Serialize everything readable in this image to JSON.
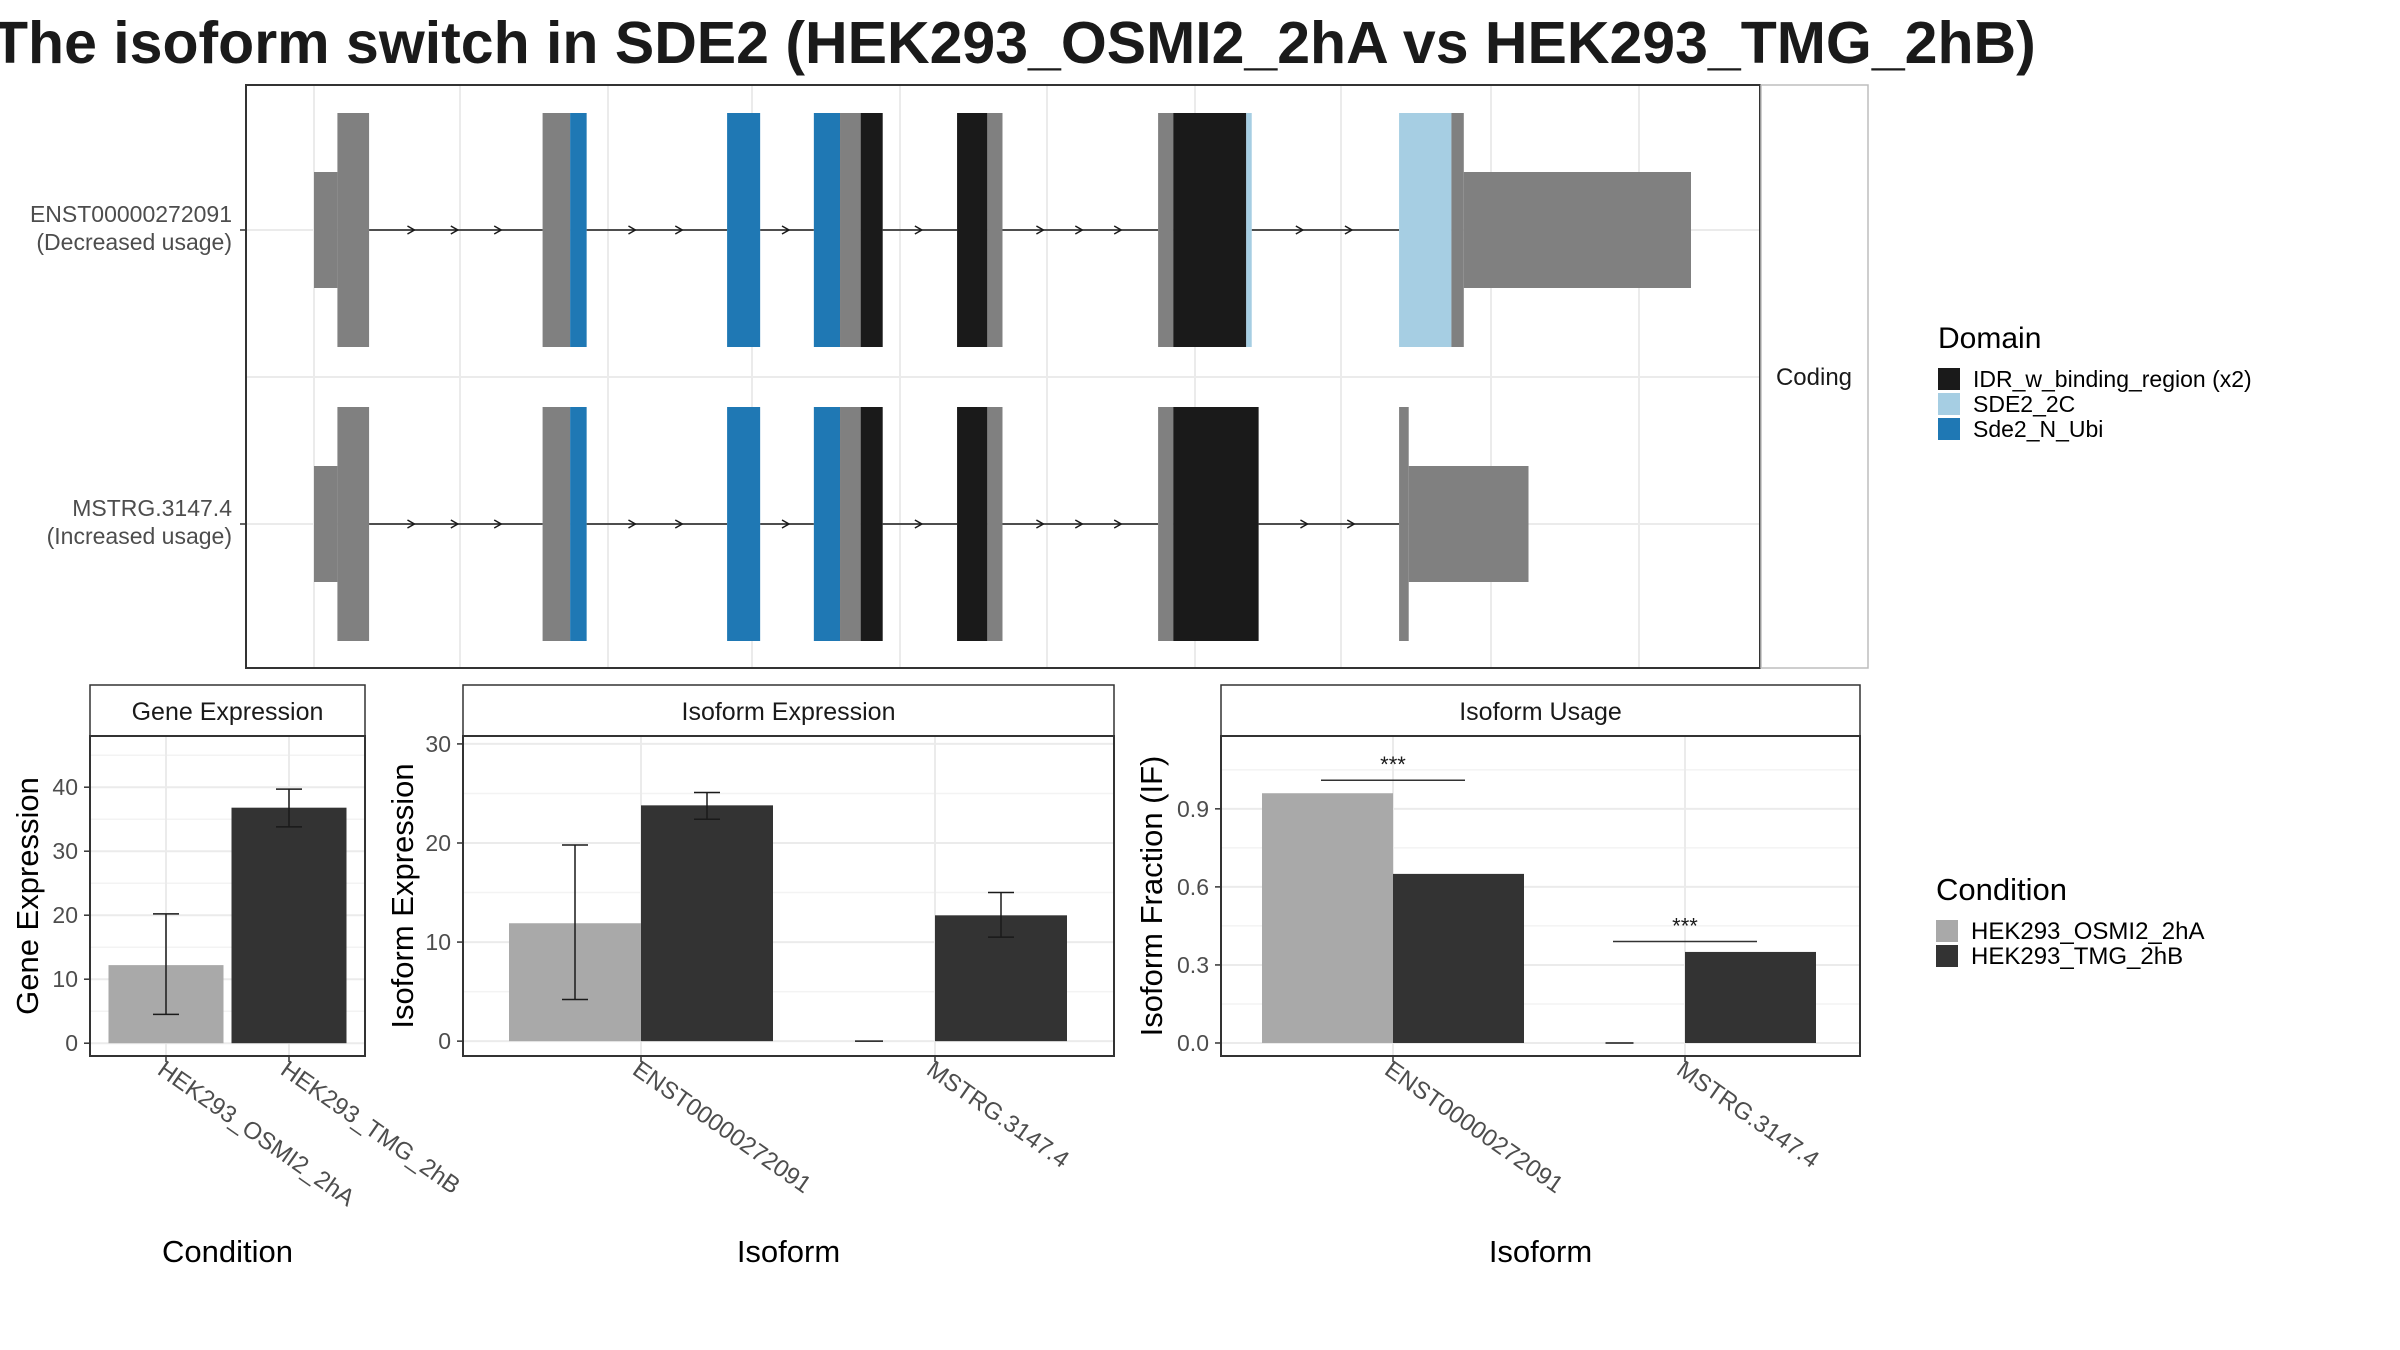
{
  "page": {
    "title": "The isoform switch in SDE2 (HEK293_OSMI2_2hA vs HEK293_TMG_2hB)"
  },
  "colors": {
    "utr_grey": "#808080",
    "IDR_w_binding_region (x2)": "#1a1a1a",
    "SDE2_2C": "#a6cee3",
    "Sde2_N_Ubi": "#1f78b4",
    "HEK293_OSMI2_2hA": "#a9a9a9",
    "HEK293_TMG_2hB": "#333333"
  },
  "chart_data": [
    {
      "type": "gene_structure",
      "panel_strip": "Coding",
      "x_range": [
        0,
        1000
      ],
      "transcripts": [
        {
          "name": "ENST00000272091",
          "label_line1": "ENST00000272091",
          "label_line2": "(Decreased usage)",
          "segments": [
            {
              "start": 0,
              "end": 17,
              "kind": "utr"
            },
            {
              "start": 17,
              "end": 40,
              "kind": "coding",
              "domain": null
            },
            {
              "start": 166,
              "end": 186,
              "kind": "coding",
              "domain": null
            },
            {
              "start": 186,
              "end": 198,
              "kind": "coding",
              "domain": "Sde2_N_Ubi"
            },
            {
              "start": 300,
              "end": 324,
              "kind": "coding",
              "domain": "Sde2_N_Ubi"
            },
            {
              "start": 363,
              "end": 382,
              "kind": "coding",
              "domain": "Sde2_N_Ubi"
            },
            {
              "start": 382,
              "end": 397,
              "kind": "coding",
              "domain": null
            },
            {
              "start": 397,
              "end": 413,
              "kind": "coding",
              "domain": "IDR_w_binding_region (x2)"
            },
            {
              "start": 467,
              "end": 489,
              "kind": "coding",
              "domain": "IDR_w_binding_region (x2)"
            },
            {
              "start": 489,
              "end": 500,
              "kind": "coding",
              "domain": null
            },
            {
              "start": 613,
              "end": 624,
              "kind": "coding",
              "domain": null
            },
            {
              "start": 624,
              "end": 677,
              "kind": "coding",
              "domain": "IDR_w_binding_region (x2)"
            },
            {
              "start": 677,
              "end": 681,
              "kind": "coding",
              "domain": "SDE2_2C"
            },
            {
              "start": 788,
              "end": 826,
              "kind": "coding",
              "domain": "SDE2_2C"
            },
            {
              "start": 826,
              "end": 835,
              "kind": "coding",
              "domain": null
            },
            {
              "start": 835,
              "end": 1000,
              "kind": "utr"
            }
          ]
        },
        {
          "name": "MSTRG.3147.4",
          "label_line1": "MSTRG.3147.4",
          "label_line2": "(Increased usage)",
          "segments": [
            {
              "start": 0,
              "end": 17,
              "kind": "utr"
            },
            {
              "start": 17,
              "end": 40,
              "kind": "coding",
              "domain": null
            },
            {
              "start": 166,
              "end": 186,
              "kind": "coding",
              "domain": null
            },
            {
              "start": 186,
              "end": 198,
              "kind": "coding",
              "domain": "Sde2_N_Ubi"
            },
            {
              "start": 300,
              "end": 324,
              "kind": "coding",
              "domain": "Sde2_N_Ubi"
            },
            {
              "start": 363,
              "end": 382,
              "kind": "coding",
              "domain": "Sde2_N_Ubi"
            },
            {
              "start": 382,
              "end": 397,
              "kind": "coding",
              "domain": null
            },
            {
              "start": 397,
              "end": 413,
              "kind": "coding",
              "domain": "IDR_w_binding_region (x2)"
            },
            {
              "start": 467,
              "end": 489,
              "kind": "coding",
              "domain": "IDR_w_binding_region (x2)"
            },
            {
              "start": 489,
              "end": 500,
              "kind": "coding",
              "domain": null
            },
            {
              "start": 613,
              "end": 624,
              "kind": "coding",
              "domain": null
            },
            {
              "start": 624,
              "end": 686,
              "kind": "coding",
              "domain": "IDR_w_binding_region (x2)"
            },
            {
              "start": 788,
              "end": 795,
              "kind": "coding",
              "domain": null
            },
            {
              "start": 795,
              "end": 882,
              "kind": "utr"
            }
          ]
        }
      ],
      "legend": {
        "title": "Domain",
        "entries": [
          "IDR_w_binding_region (x2)",
          "SDE2_2C",
          "Sde2_N_Ubi"
        ]
      }
    },
    {
      "type": "bar",
      "strip": "Gene Expression",
      "xlabel": "Condition",
      "ylabel": "Gene Expression",
      "ylim": [
        -2,
        48
      ],
      "yticks": [
        0,
        10,
        20,
        30,
        40
      ],
      "categories": [
        "HEK293_OSMI2_2hA",
        "HEK293_TMG_2hB"
      ],
      "series": [
        {
          "name": "HEK293_OSMI2_2hA",
          "values": [
            12.2,
            null
          ],
          "err_low": [
            4.5,
            null
          ],
          "err_high": [
            20.2,
            null
          ]
        },
        {
          "name": "HEK293_TMG_2hB",
          "values": [
            null,
            36.8
          ],
          "err_low": [
            null,
            33.8
          ],
          "err_high": [
            null,
            39.7
          ]
        }
      ]
    },
    {
      "type": "bar",
      "strip": "Isoform Expression",
      "xlabel": "Isoform",
      "ylabel": "Isoform Expression",
      "ylim": [
        -1.5,
        30.8
      ],
      "yticks": [
        0,
        10,
        20,
        30
      ],
      "categories": [
        "ENST00000272091",
        "MSTRG.3147.4"
      ],
      "series": [
        {
          "name": "HEK293_OSMI2_2hA",
          "values": [
            11.9,
            0.0
          ],
          "err_low": [
            4.2,
            0.0
          ],
          "err_high": [
            19.8,
            0.0
          ]
        },
        {
          "name": "HEK293_TMG_2hB",
          "values": [
            23.8,
            12.7
          ],
          "err_low": [
            22.4,
            10.5
          ],
          "err_high": [
            25.1,
            15.0
          ]
        }
      ]
    },
    {
      "type": "bar",
      "strip": "Isoform Usage",
      "xlabel": "Isoform",
      "ylabel": "Isoform Fraction (IF)",
      "ylim": [
        -0.05,
        1.18
      ],
      "yticks": [
        0.0,
        0.3,
        0.6,
        0.9
      ],
      "ytick_labels": [
        "0.0",
        "0.3",
        "0.6",
        "0.9"
      ],
      "categories": [
        "ENST00000272091",
        "MSTRG.3147.4"
      ],
      "series": [
        {
          "name": "HEK293_OSMI2_2hA",
          "values": [
            0.96,
            0.0
          ]
        },
        {
          "name": "HEK293_TMG_2hB",
          "values": [
            0.65,
            0.35
          ]
        }
      ],
      "significance": [
        {
          "category": "ENST00000272091",
          "label": "***",
          "y": 1.01
        },
        {
          "category": "MSTRG.3147.4",
          "label": "***",
          "y": 0.39
        }
      ]
    }
  ],
  "condition_legend": {
    "title": "Condition",
    "entries": [
      "HEK293_OSMI2_2hA",
      "HEK293_TMG_2hB"
    ]
  }
}
